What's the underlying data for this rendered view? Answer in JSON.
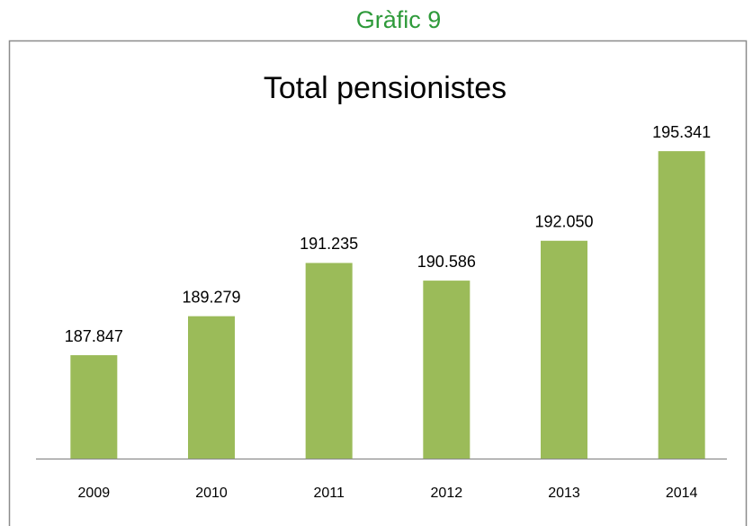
{
  "page_heading": "Gràfic 9",
  "chart_data": {
    "type": "bar",
    "title": "Total pensionistes",
    "categories": [
      "2009",
      "2010",
      "2011",
      "2012",
      "2013",
      "2014"
    ],
    "values": [
      187847,
      189279,
      191235,
      190586,
      192050,
      195341
    ],
    "value_labels": [
      "187.847",
      "189.279",
      "191.235",
      "190.586",
      "192.050",
      "195.341"
    ],
    "color": "#9bbb59",
    "ylim": [
      184050,
      196600
    ]
  }
}
